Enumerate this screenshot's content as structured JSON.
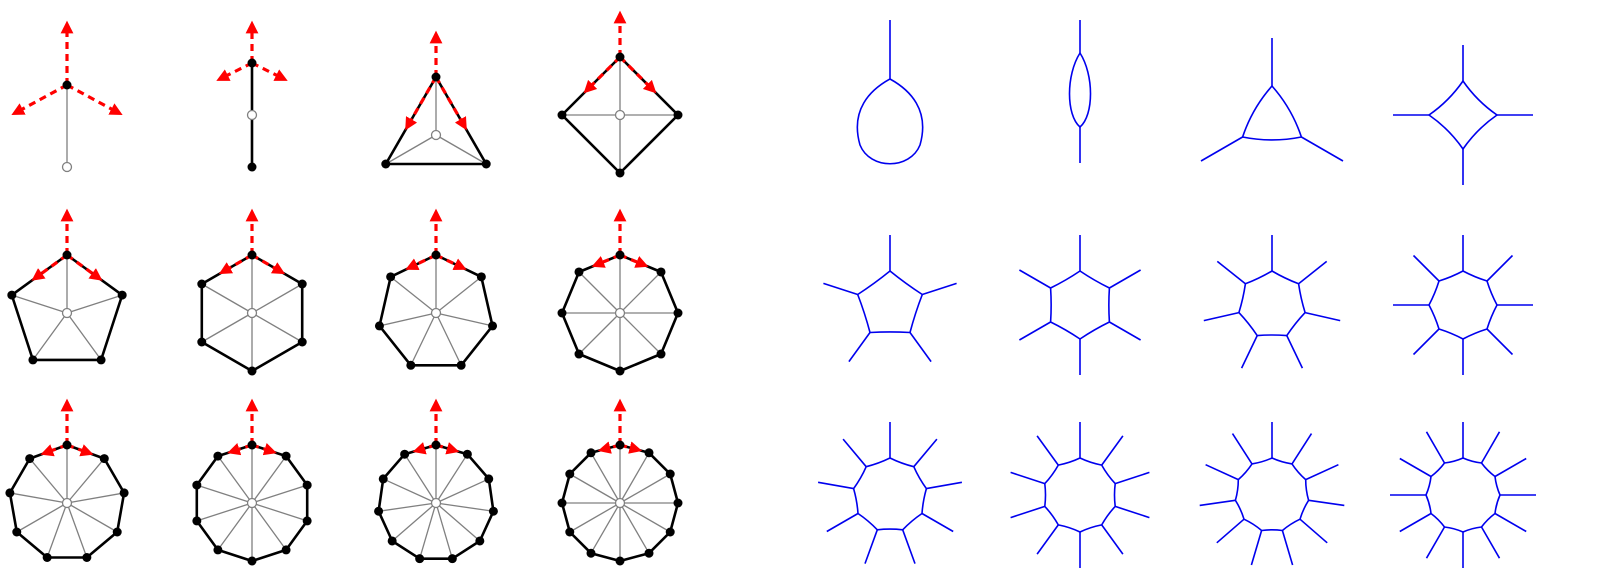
{
  "colors": {
    "background": "#ffffff",
    "polygon_edge": "#000000",
    "spoke": "#808080",
    "vertex_fill": "#000000",
    "center_fill": "#ffffff",
    "center_stroke": "#808080",
    "arrow": "#ff0000",
    "dual_curve": "#0000ee"
  },
  "left_panels": [
    {
      "n": 1
    },
    {
      "n": 2
    },
    {
      "n": 3
    },
    {
      "n": 4
    },
    {
      "n": 5
    },
    {
      "n": 6
    },
    {
      "n": 7
    },
    {
      "n": 8
    },
    {
      "n": 9
    },
    {
      "n": 10
    },
    {
      "n": 11
    },
    {
      "n": 12
    }
  ],
  "right_panels": [
    {
      "n": 1
    },
    {
      "n": 2
    },
    {
      "n": 3
    },
    {
      "n": 4
    },
    {
      "n": 5
    },
    {
      "n": 6
    },
    {
      "n": 7
    },
    {
      "n": 8
    },
    {
      "n": 9
    },
    {
      "n": 10
    },
    {
      "n": 11
    },
    {
      "n": 12
    }
  ],
  "arrows": {
    "style": "dashed",
    "count_per_panel": 3
  }
}
